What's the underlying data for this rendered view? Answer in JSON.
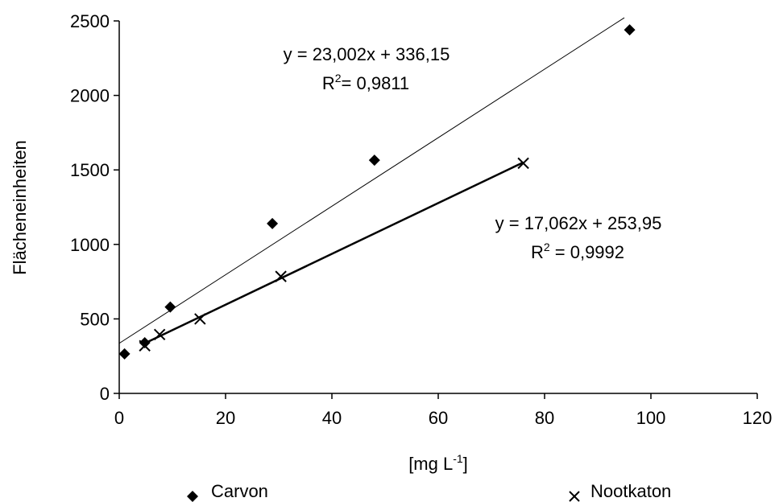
{
  "chart_data": {
    "type": "scatter",
    "xlabel": "[mg L",
    "xlabel_sup": "-1",
    "xlabel_suffix": "]",
    "ylabel": "Flächeneinheiten",
    "xlim": [
      0,
      120
    ],
    "ylim": [
      0,
      2500
    ],
    "x_ticks": [
      0,
      20,
      40,
      60,
      80,
      100,
      120
    ],
    "y_ticks": [
      0,
      500,
      1000,
      1500,
      2000,
      2500
    ],
    "grid": false,
    "legend_placement": "bottom",
    "series": [
      {
        "name": "Carvon",
        "marker": "diamond",
        "points": [
          [
            1,
            265
          ],
          [
            4.8,
            340
          ],
          [
            9.6,
            580
          ],
          [
            28.8,
            1140
          ],
          [
            48,
            1565
          ],
          [
            96,
            2440
          ]
        ],
        "trendline": {
          "slope": 23.002,
          "intercept": 336.15,
          "x_range": [
            0,
            95
          ],
          "equation": "y = 23,002x + 336,15",
          "r2_prefix": "R",
          "r2_sup": "2",
          "r2_value": "= 0,9811"
        }
      },
      {
        "name": "Nootkaton",
        "marker": "x",
        "points": [
          [
            4.8,
            320
          ],
          [
            7.6,
            395
          ],
          [
            15.2,
            500
          ],
          [
            30.4,
            785
          ],
          [
            76,
            1545
          ]
        ],
        "trendline": {
          "slope": 17.062,
          "intercept": 253.95,
          "x_range": [
            4.8,
            76
          ],
          "equation": "y = 17,062x + 253,95",
          "r2_prefix": "R",
          "r2_sup": "2",
          "r2_value": " = 0,9992"
        }
      }
    ],
    "colors": {
      "marker": "#000000",
      "line": "#000000",
      "background": "#ffffff"
    }
  }
}
